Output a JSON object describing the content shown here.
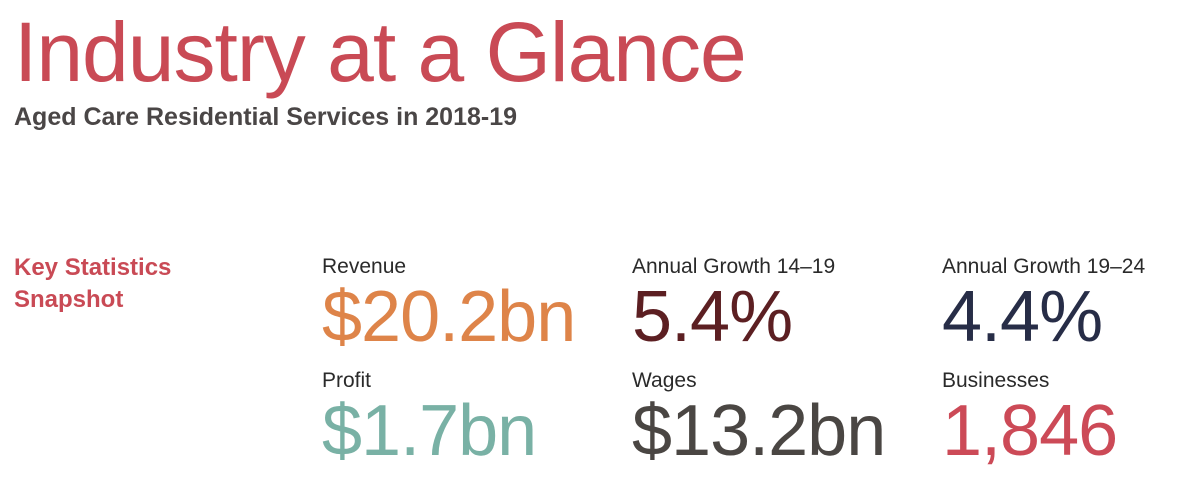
{
  "header": {
    "title": "Industry at a Glance",
    "subtitle": "Aged Care Residential Services in 2018-19"
  },
  "section": {
    "title_line1": "Key Statistics",
    "title_line2": "Snapshot"
  },
  "stats": [
    {
      "label": "Revenue",
      "value": "$20.2bn",
      "color": "#de8449"
    },
    {
      "label": "Annual Growth 14–19",
      "value": "5.4%",
      "color": "#5c1f22"
    },
    {
      "label": "Annual Growth 19–24",
      "value": "4.4%",
      "color": "#272d47"
    },
    {
      "label": "Profit",
      "value": "$1.7bn",
      "color": "#79b1a5"
    },
    {
      "label": "Wages",
      "value": "$13.2bn",
      "color": "#4a4643"
    },
    {
      "label": "Businesses",
      "value": "1,846",
      "color": "#cc4a57"
    }
  ]
}
